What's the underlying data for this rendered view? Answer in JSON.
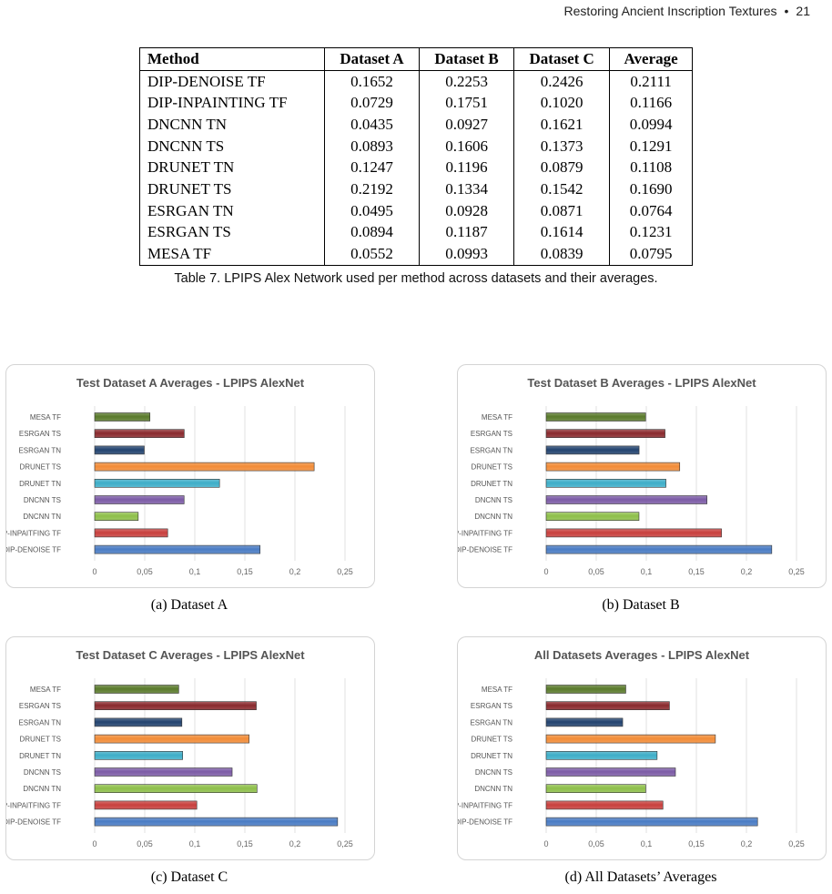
{
  "header": {
    "title": "Restoring Ancient Inscription Textures",
    "page_number": "21"
  },
  "table": {
    "columns": [
      "Method",
      "Dataset A",
      "Dataset B",
      "Dataset C",
      "Average"
    ],
    "rows": [
      [
        "DIP-DENOISE TF",
        "0.1652",
        "0.2253",
        "0.2426",
        "0.2111"
      ],
      [
        "DIP-INPAINTING TF",
        "0.0729",
        "0.1751",
        "0.1020",
        "0.1166"
      ],
      [
        "DNCNN TN",
        "0.0435",
        "0.0927",
        "0.1621",
        "0.0994"
      ],
      [
        "DNCNN TS",
        "0.0893",
        "0.1606",
        "0.1373",
        "0.1291"
      ],
      [
        "DRUNET TN",
        "0.1247",
        "0.1196",
        "0.0879",
        "0.1108"
      ],
      [
        "DRUNET TS",
        "0.2192",
        "0.1334",
        "0.1542",
        "0.1690"
      ],
      [
        "ESRGAN TN",
        "0.0495",
        "0.0928",
        "0.0871",
        "0.0764"
      ],
      [
        "ESRGAN TS",
        "0.0894",
        "0.1187",
        "0.1614",
        "0.1231"
      ],
      [
        "MESA TF",
        "0.0552",
        "0.0993",
        "0.0839",
        "0.0795"
      ]
    ],
    "caption": "Table 7.  LPIPS Alex Network used per method across datasets and their averages."
  },
  "chart_data": [
    {
      "type": "bar",
      "title": "Test Dataset A Averages - LPIPS AlexNet",
      "categories": [
        "MESA TF",
        "ESRGAN TS",
        "ESRGAN TN",
        "DRUNET TS",
        "DRUNET TN",
        "DNCNN TS",
        "DNCNN TN",
        "DIP-INPAITFING TF",
        "DIP-DENOISE TF"
      ],
      "values": [
        0.0552,
        0.0894,
        0.0495,
        0.2192,
        0.1247,
        0.0893,
        0.0435,
        0.0729,
        0.1652
      ],
      "xticks": [
        "0",
        "0,05",
        "0,1",
        "0,15",
        "0,2",
        "0,25"
      ],
      "xlim": [
        0,
        0.25
      ],
      "subcaption": "(a) Dataset A"
    },
    {
      "type": "bar",
      "title": "Test Dataset B Averages - LPIPS AlexNet",
      "categories": [
        "MESA TF",
        "ESRGAN TS",
        "ESRGAN TN",
        "DRUNET TS",
        "DRUNET TN",
        "DNCNN TS",
        "DNCNN TN",
        "DIP-INPAITFING TF",
        "DIP-DENOISE TF"
      ],
      "values": [
        0.0993,
        0.1187,
        0.0928,
        0.1334,
        0.1196,
        0.1606,
        0.0927,
        0.1751,
        0.2253
      ],
      "xticks": [
        "0",
        "0,05",
        "0,1",
        "0,15",
        "0,2",
        "0,25"
      ],
      "xlim": [
        0,
        0.25
      ],
      "subcaption": "(b) Dataset B"
    },
    {
      "type": "bar",
      "title": "Test Dataset C Averages - LPIPS AlexNet",
      "categories": [
        "MESA TF",
        "ESRGAN TS",
        "ESRGAN TN",
        "DRUNET TS",
        "DRUNET TN",
        "DNCNN TS",
        "DNCNN TN",
        "DIP-INPAITFING TF",
        "DIP-DENOISE TF"
      ],
      "values": [
        0.0839,
        0.1614,
        0.0871,
        0.1542,
        0.0879,
        0.1373,
        0.1621,
        0.102,
        0.2426
      ],
      "xticks": [
        "0",
        "0,05",
        "0,1",
        "0,15",
        "0,2",
        "0,25"
      ],
      "xlim": [
        0,
        0.25
      ],
      "subcaption": "(c) Dataset C"
    },
    {
      "type": "bar",
      "title": "All Datasets Averages - LPIPS AlexNet",
      "categories": [
        "MESA TF",
        "ESRGAN TS",
        "ESRGAN TN",
        "DRUNET TS",
        "DRUNET TN",
        "DNCNN TS",
        "DNCNN TN",
        "DIP-INPAITFING TF",
        "DIP-DENOISE TF"
      ],
      "values": [
        0.0795,
        0.1231,
        0.0764,
        0.169,
        0.1108,
        0.1291,
        0.0994,
        0.1166,
        0.2111
      ],
      "xticks": [
        "0",
        "0,05",
        "0,1",
        "0,15",
        "0,2",
        "0,25"
      ],
      "xlim": [
        0,
        0.25
      ],
      "subcaption": "(d) All Datasets’ Averages"
    }
  ],
  "bar_colors": [
    "#5a7a2c",
    "#8a2a2e",
    "#23436f",
    "#f28c38",
    "#3eaec8",
    "#7c5ba6",
    "#8ebf4a",
    "#c8403e",
    "#4a7cc4"
  ]
}
